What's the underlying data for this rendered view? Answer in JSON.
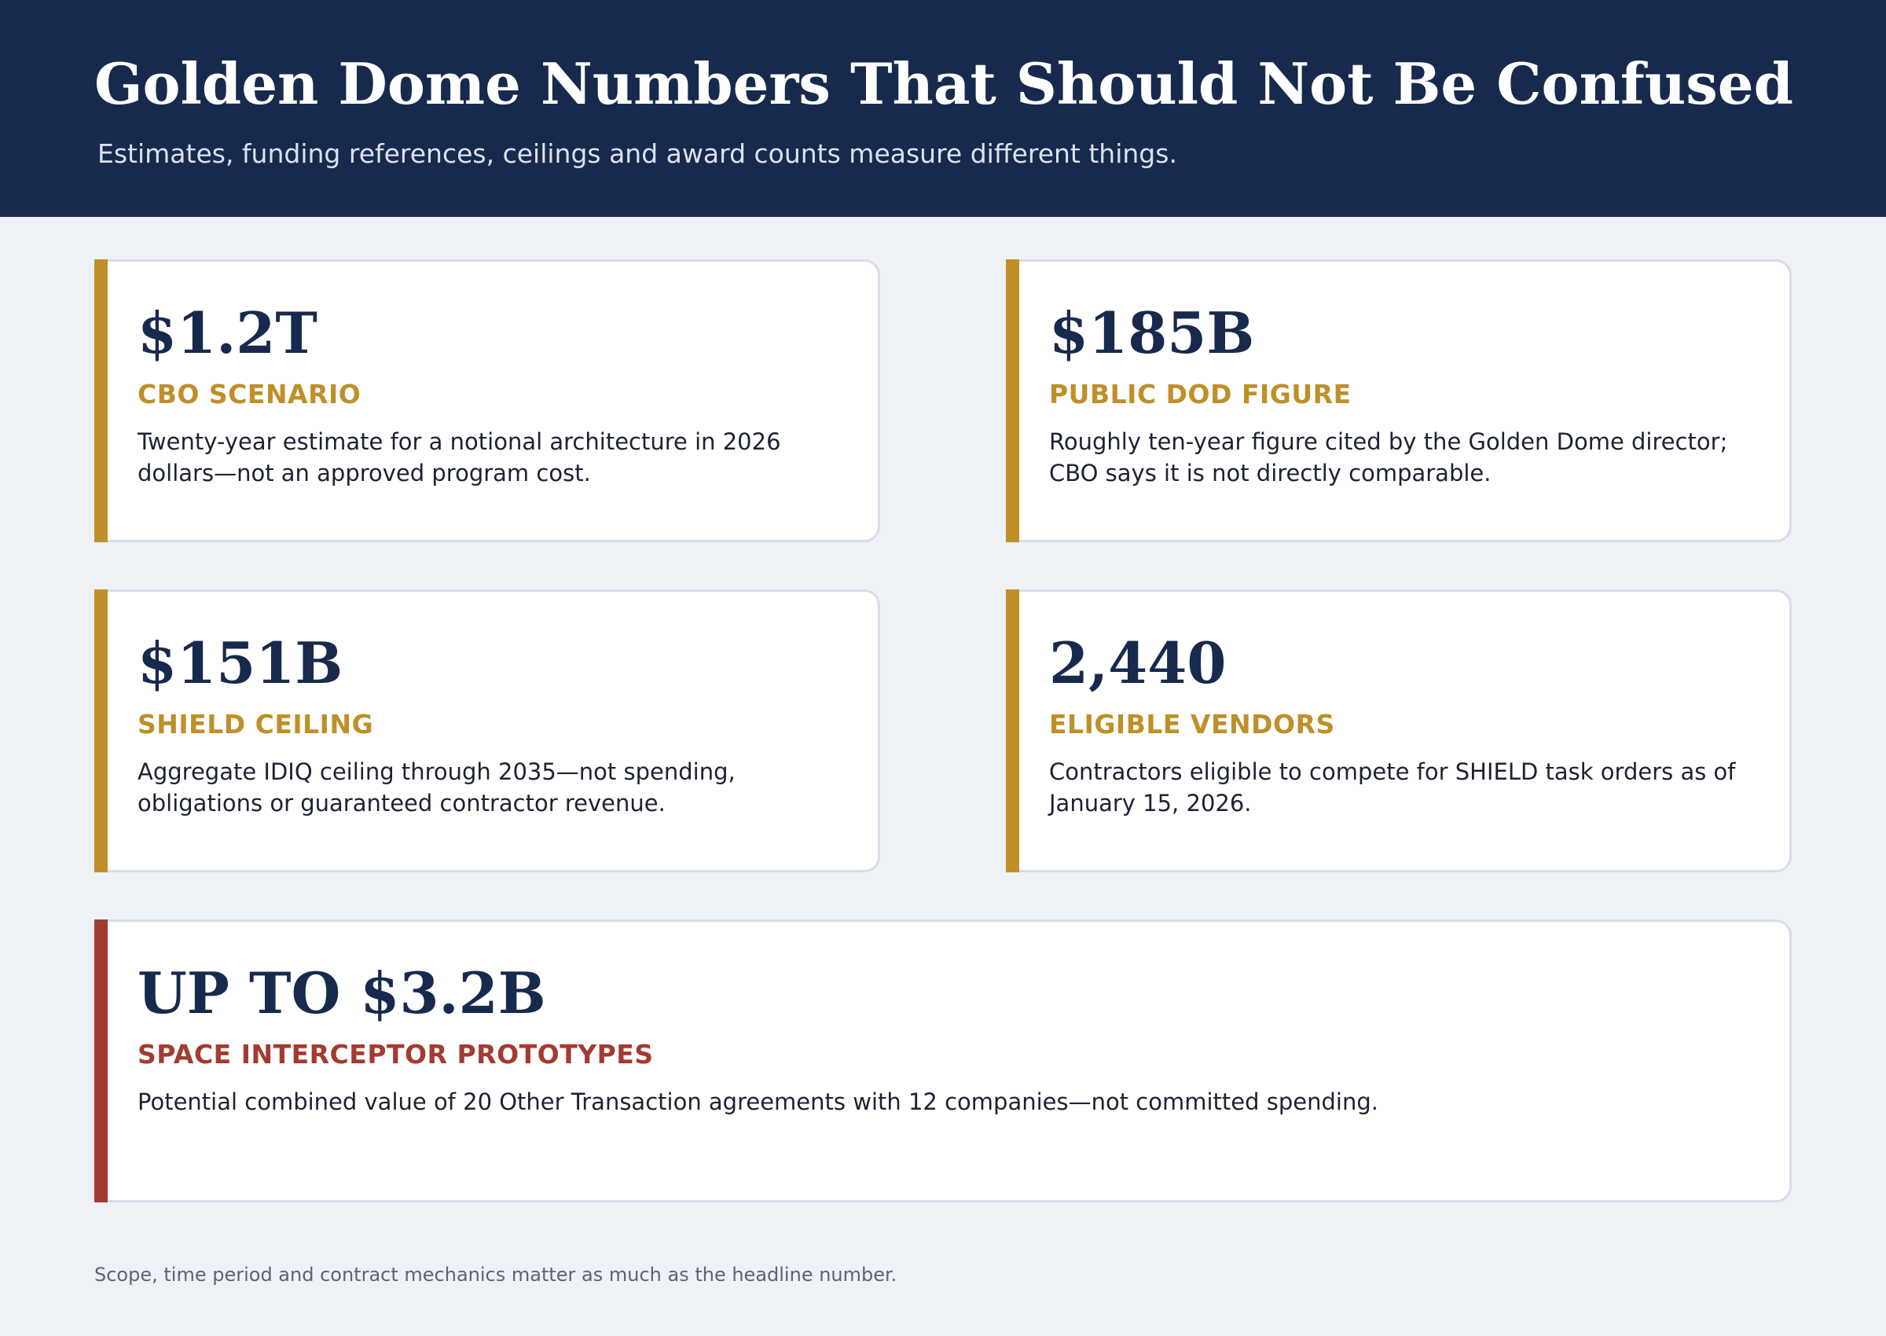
{
  "header": {
    "title": "Golden Dome Numbers That Should Not Be Confused",
    "subtitle": "Estimates, funding references, ceilings and award counts measure different things."
  },
  "colors": {
    "header_bg": "#172a4d",
    "page_bg": "#eef1f6",
    "gold_accent": "#bf8f29",
    "red_accent": "#a33b31",
    "value_text": "#172a4d"
  },
  "cards": [
    {
      "value": "$1.2T",
      "label": "CBO SCENARIO",
      "description": "Twenty-year estimate for a notional architecture in 2026 dollars—not an approved program cost.",
      "accent": "gold"
    },
    {
      "value": "$185B",
      "label": "PUBLIC DOD FIGURE",
      "description": "Roughly ten-year figure cited by the Golden Dome director; CBO says it is not directly comparable.",
      "accent": "gold"
    },
    {
      "value": "$151B",
      "label": "SHIELD CEILING",
      "description": "Aggregate IDIQ ceiling through 2035—not spending, obligations or guaranteed contractor revenue.",
      "accent": "gold"
    },
    {
      "value": "2,440",
      "label": "ELIGIBLE VENDORS",
      "description": "Contractors eligible to compete for SHIELD task orders as of January 15, 2026.",
      "accent": "gold"
    },
    {
      "value": "UP TO $3.2B",
      "label": "SPACE INTERCEPTOR PROTOTYPES",
      "description": "Potential combined value of 20 Other Transaction agreements with 12 companies—not committed spending.",
      "accent": "red"
    }
  ],
  "footnote": "Scope, time period and contract mechanics matter as much as the headline number."
}
